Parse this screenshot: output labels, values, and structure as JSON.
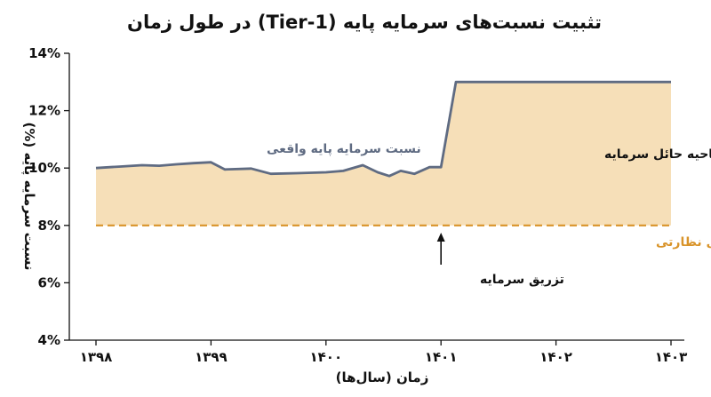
{
  "chart_data": {
    "type": "line",
    "title": "تثبیت نسبت‌های سرمایه پایه (Tier-1) در طول زمان",
    "xlabel": "زمان (سال‌ها)",
    "ylabel": "نسبت سرمایه پایه (%)",
    "xlim": [
      1398,
      1403
    ],
    "ylim": [
      4,
      14
    ],
    "x_ticks": [
      1398,
      1399,
      1400,
      1401,
      1402,
      1403
    ],
    "x_tick_labels": [
      "۱۳۹۸",
      "۱۳۹۹",
      "۱۴۰۰",
      "۱۴۰۱",
      "۱۴۰۲",
      "۱۴۰۳"
    ],
    "y_ticks": [
      4,
      6,
      8,
      10,
      12,
      14
    ],
    "y_tick_labels": [
      "4%",
      "6%",
      "8%",
      "10%",
      "12%",
      "14%"
    ],
    "grid": false,
    "series": [
      {
        "name": "نسبت سرمایه پایه واقعی",
        "color": "#5f6b82",
        "fill": "#f6dfb8",
        "x": [
          1398.0,
          1398.2,
          1398.4,
          1398.55,
          1398.7,
          1398.85,
          1399.0,
          1399.12,
          1399.35,
          1399.52,
          1399.75,
          1400.0,
          1400.15,
          1400.32,
          1400.45,
          1400.55,
          1400.65,
          1400.77,
          1400.9,
          1401.0,
          1401.13,
          1401.5,
          1402.0,
          1402.5,
          1403.0
        ],
        "values": [
          10.0,
          10.05,
          10.1,
          10.08,
          10.13,
          10.17,
          10.2,
          9.95,
          9.98,
          9.8,
          9.82,
          9.85,
          9.9,
          10.1,
          9.85,
          9.72,
          9.9,
          9.8,
          10.03,
          10.03,
          13.0,
          13.0,
          13.0,
          13.0,
          13.0
        ]
      }
    ],
    "reference_line": {
      "name": "حداقل نظارتی",
      "value": 8,
      "color": "#d9942a",
      "style": "dashed"
    },
    "annotations": {
      "region_label": "ناحیه حائل سرمایه",
      "event_label": "تزریق سرمایه",
      "event_x": 1401,
      "event_color": "#111111"
    }
  }
}
